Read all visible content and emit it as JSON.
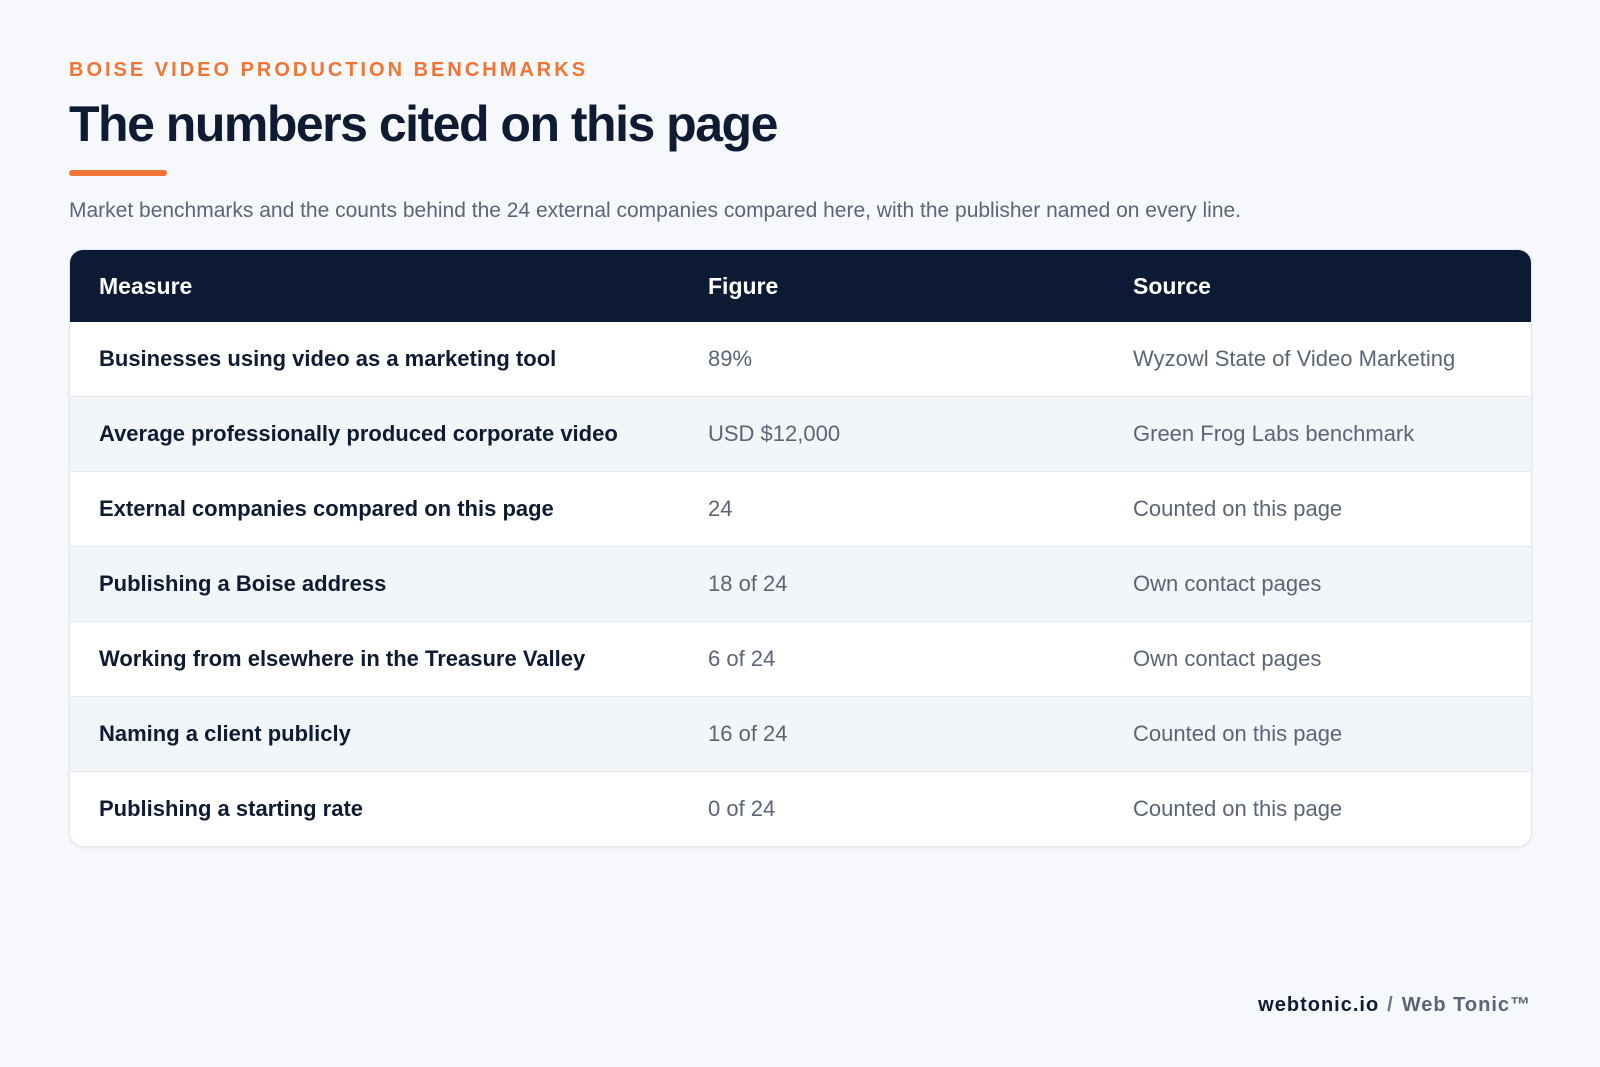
{
  "header": {
    "eyebrow": "BOISE VIDEO PRODUCTION BENCHMARKS",
    "title": "The numbers cited on this page",
    "lede": "Market benchmarks and the counts behind the 24 external companies compared here, with the publisher named on every line."
  },
  "table": {
    "columns": [
      "Measure",
      "Figure",
      "Source"
    ],
    "rows": [
      {
        "measure": "Businesses using video as a marketing tool",
        "figure": "89%",
        "source": "Wyzowl State of Video Marketing"
      },
      {
        "measure": "Average professionally produced corporate video",
        "figure": "USD $12,000",
        "source": "Green Frog Labs benchmark"
      },
      {
        "measure": "External companies compared on this page",
        "figure": "24",
        "source": "Counted on this page"
      },
      {
        "measure": "Publishing a Boise address",
        "figure": "18 of 24",
        "source": "Own contact pages"
      },
      {
        "measure": "Working from elsewhere in the Treasure Valley",
        "figure": "6 of 24",
        "source": "Own contact pages"
      },
      {
        "measure": "Naming a client publicly",
        "figure": "16 of 24",
        "source": "Counted on this page"
      },
      {
        "measure": "Publishing a starting rate",
        "figure": "0 of 24",
        "source": "Counted on this page"
      }
    ]
  },
  "footer": {
    "domain": "webtonic.io",
    "separator": "/",
    "brand": "Web Tonic™"
  },
  "colors": {
    "accent": "#f07434",
    "navy": "#0d1a33",
    "background": "#f6f8fb"
  }
}
